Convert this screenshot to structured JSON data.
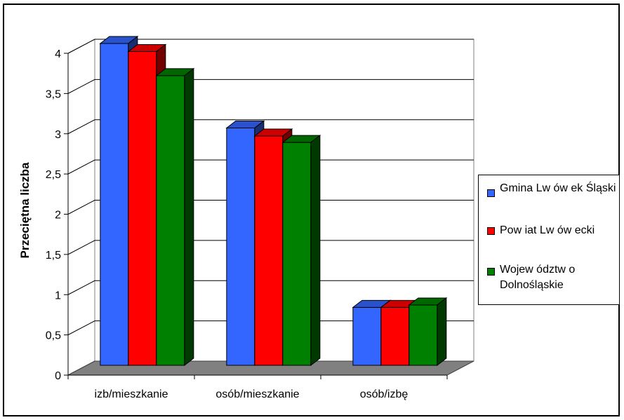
{
  "chart_data": {
    "type": "bar",
    "style": "3d-clustered",
    "categories": [
      "izb/mieszkanie",
      "osób/mieszkanie",
      "osób/izbę"
    ],
    "series": [
      {
        "name": "Gmina Lw ów ek Śląski",
        "color": "#3366ff",
        "values": [
          4.0,
          2.95,
          0.72
        ]
      },
      {
        "name": "Pow iat Lw ów ecki",
        "color": "#ff0000",
        "values": [
          3.9,
          2.85,
          0.72
        ]
      },
      {
        "name": "Wojew ództw o Dolnośląskie",
        "color": "#008000",
        "values": [
          3.6,
          2.77,
          0.75
        ]
      }
    ],
    "ylabel": "Przeciętna liczba",
    "xlabel": "",
    "ylim": [
      0,
      4
    ],
    "yticks": [
      "0",
      "0,5",
      "1",
      "1,5",
      "2",
      "2,5",
      "3",
      "3,5",
      "4"
    ],
    "grid": true,
    "legend_position": "right",
    "floor_color": "#808080"
  }
}
